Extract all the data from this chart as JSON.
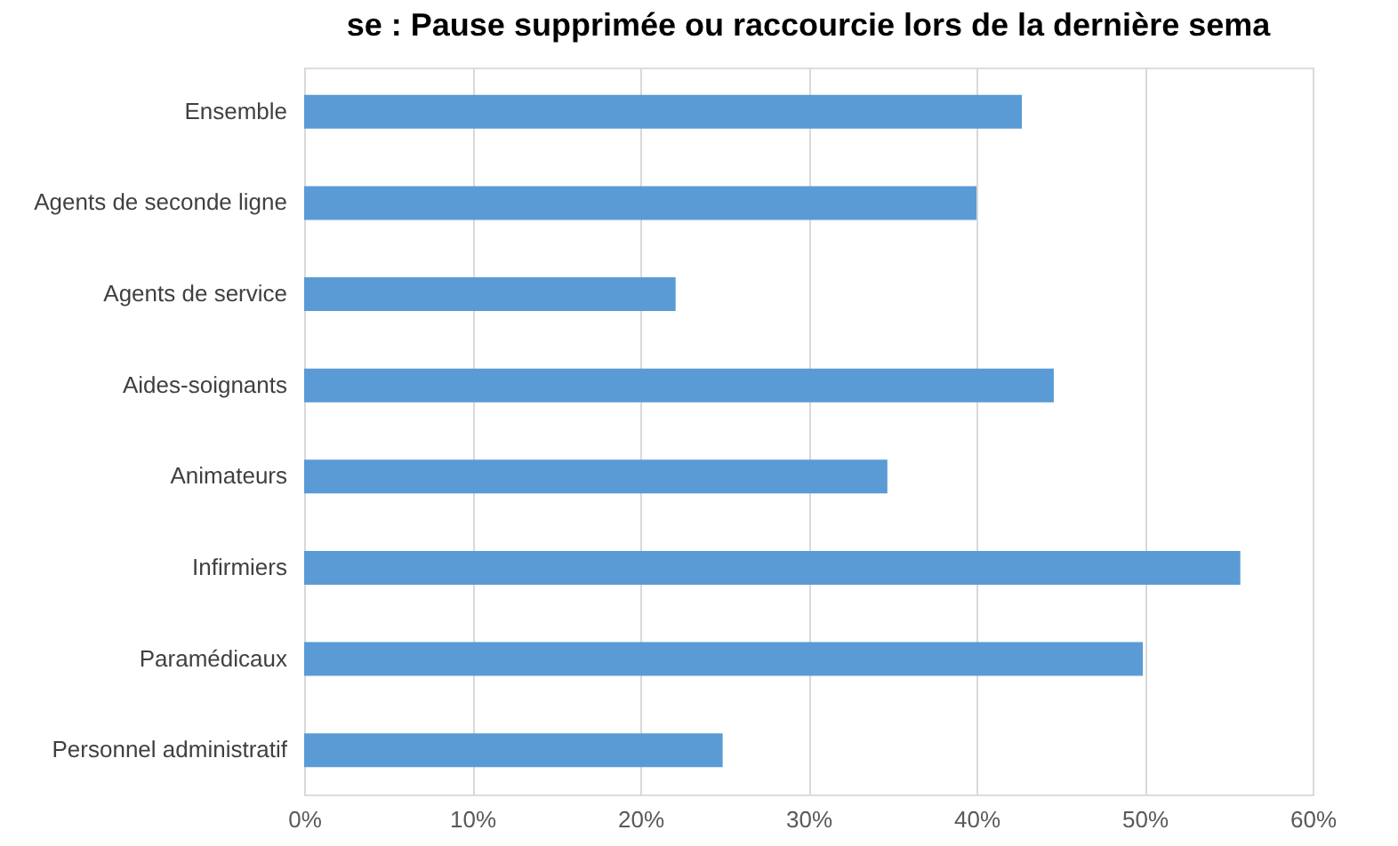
{
  "chart_data": {
    "type": "bar",
    "orientation": "horizontal",
    "title": "se : Pause supprimée ou raccourcie lors de la dernière sema",
    "categories": [
      "Ensemble",
      "Agents de seconde ligne",
      "Agents de service",
      "Aides-soignants",
      "Animateurs",
      "Infirmiers",
      "Paramédicaux",
      "Personnel administratif"
    ],
    "values": [
      42.7,
      40.0,
      22.1,
      44.6,
      34.7,
      55.7,
      49.9,
      24.9
    ],
    "color": "#5b9bd5",
    "xlim": [
      0,
      60
    ],
    "xticks": [
      {
        "value": 0,
        "label": "0%"
      },
      {
        "value": 10,
        "label": "10%"
      },
      {
        "value": 20,
        "label": "20%"
      },
      {
        "value": 30,
        "label": "30%"
      },
      {
        "value": 40,
        "label": "40%"
      },
      {
        "value": 50,
        "label": "50%"
      },
      {
        "value": 60,
        "label": "60%"
      }
    ],
    "grid": "x"
  }
}
